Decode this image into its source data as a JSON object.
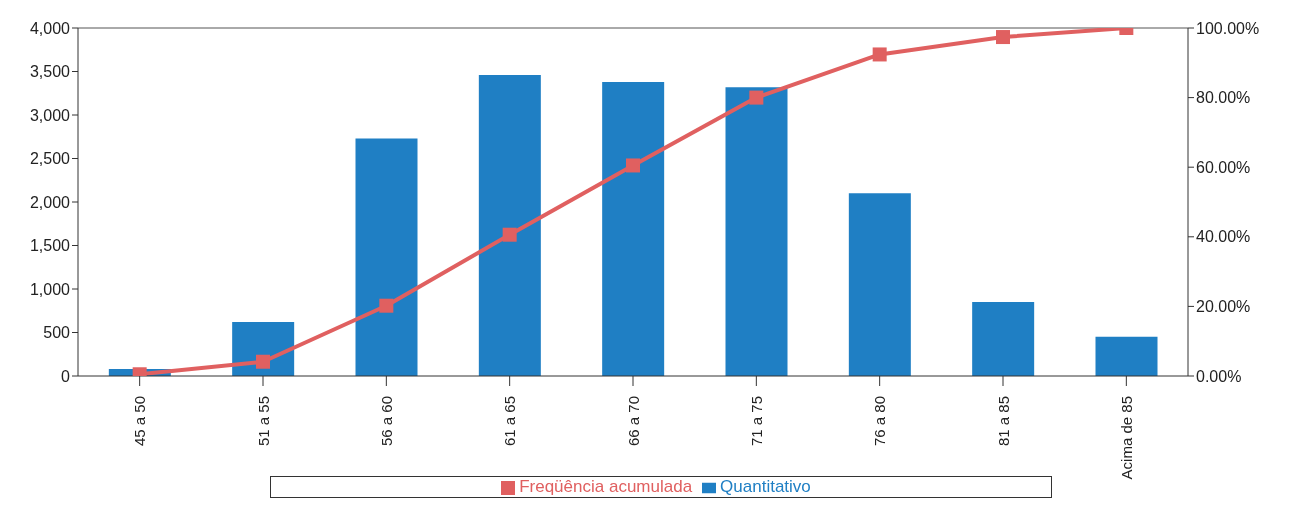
{
  "chart_data": {
    "type": "bar",
    "categories": [
      "45 a 50",
      "51 a 55",
      "56 a 60",
      "61 a 65",
      "66 a 70",
      "71 a 75",
      "76 a 80",
      "81 a 85",
      "Acima de 85"
    ],
    "series": [
      {
        "name": "Quantitativo",
        "color": "#1f7fc4",
        "values": [
          80,
          620,
          2730,
          3460,
          3380,
          3320,
          2100,
          850,
          450
        ]
      },
      {
        "name": "Freqüência acumulada",
        "type": "line",
        "axis": "y2",
        "color": "#e06060",
        "values": [
          0.5,
          4.1,
          20.2,
          40.6,
          60.5,
          80.0,
          92.4,
          97.4,
          100
        ]
      }
    ],
    "ylim": [
      0,
      4000
    ],
    "yticks": [
      {
        "value": 0,
        "label": "0"
      },
      {
        "value": 500,
        "label": "500"
      },
      {
        "value": 1000,
        "label": "1,000"
      },
      {
        "value": 1500,
        "label": "1,500"
      },
      {
        "value": 2000,
        "label": "2,000"
      },
      {
        "value": 2500,
        "label": "2,500"
      },
      {
        "value": 3000,
        "label": "3,000"
      },
      {
        "value": 3500,
        "label": "3,500"
      },
      {
        "value": 4000,
        "label": "4,000"
      }
    ],
    "y2lim": [
      0,
      100
    ],
    "y2ticks": [
      {
        "value": 0,
        "label": "0.00%"
      },
      {
        "value": 20,
        "label": "20.00%"
      },
      {
        "value": 40,
        "label": "40.00%"
      },
      {
        "value": 60,
        "label": "60.00%"
      },
      {
        "value": 80,
        "label": "80.00%"
      },
      {
        "value": 100,
        "label": "100.00%"
      }
    ],
    "grid": false,
    "legend": "bottom",
    "marker": "square"
  }
}
